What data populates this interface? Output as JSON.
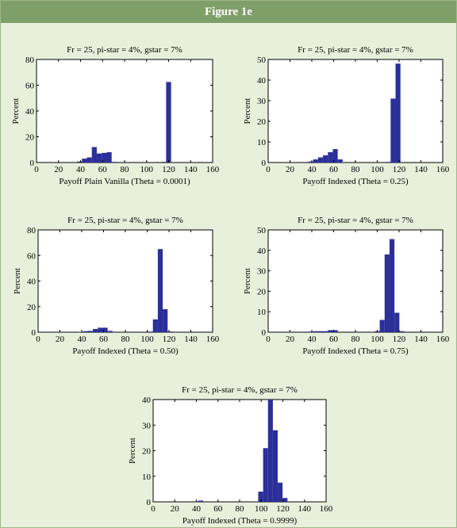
{
  "page_title": "Figure 1e",
  "colors": {
    "banner": "#7f9f68",
    "background": "#e8f0dc",
    "bar": "#2b2f9a"
  },
  "chart_data": [
    {
      "type": "bar",
      "title": "Fr = 25, pi-star = 4%, gstar = 7%",
      "xlabel": "Payoff Plain Vanilla (Theta = 0.0001)",
      "ylabel": "Percent",
      "xlim": [
        0,
        160
      ],
      "ylim": [
        0,
        80
      ],
      "xticks": [
        0,
        20,
        40,
        60,
        80,
        100,
        120,
        140,
        160
      ],
      "yticks": [
        0,
        20,
        40,
        60,
        80
      ],
      "bin_width": 4.5,
      "x": [
        39,
        43.5,
        48,
        52.5,
        57,
        61.5,
        66,
        70.5,
        115.5,
        120
      ],
      "values": [
        0.8,
        3,
        4,
        12,
        7,
        7.5,
        8,
        0.5,
        0.5,
        62.5
      ]
    },
    {
      "type": "bar",
      "title": "Fr = 25, pi-star = 4%, gstar = 7%",
      "xlabel": "Payoff Indexed (Theta = 0.25)",
      "ylabel": "Percent",
      "xlim": [
        0,
        160
      ],
      "ylim": [
        0,
        50
      ],
      "xticks": [
        0,
        20,
        40,
        60,
        80,
        100,
        120,
        140,
        160
      ],
      "yticks": [
        0,
        10,
        20,
        30,
        40,
        50
      ],
      "bin_width": 4.5,
      "x": [
        39,
        43.5,
        48,
        52.5,
        57,
        61.5,
        66,
        110,
        114.5,
        119
      ],
      "values": [
        0.5,
        1.5,
        2.5,
        3.5,
        5,
        6.5,
        1.5,
        0.3,
        31,
        48
      ]
    },
    {
      "type": "bar",
      "title": "Fr = 25, pi-star = 4%, gstar = 7%",
      "xlabel": "Payoff Indexed (Theta = 0.50)",
      "ylabel": "Percent",
      "xlim": [
        0,
        160
      ],
      "ylim": [
        0,
        80
      ],
      "xticks": [
        0,
        20,
        40,
        60,
        80,
        100,
        120,
        140,
        160
      ],
      "yticks": [
        0,
        20,
        40,
        60,
        80
      ],
      "bin_width": 4.5,
      "x": [
        39,
        43.5,
        48,
        52.5,
        57,
        61.5,
        66,
        103,
        107.5,
        112,
        116.5,
        121
      ],
      "values": [
        0.3,
        0.8,
        1,
        2.5,
        3.5,
        3.5,
        1,
        0.5,
        10,
        65,
        18,
        0.5
      ]
    },
    {
      "type": "bar",
      "title": "Fr = 25, pi-star = 4%, gstar = 7%",
      "xlabel": "Payoff Indexed (Theta = 0.75)",
      "ylabel": "Percent",
      "xlim": [
        0,
        160
      ],
      "ylim": [
        0,
        50
      ],
      "xticks": [
        0,
        20,
        40,
        60,
        80,
        100,
        120,
        140,
        160
      ],
      "yticks": [
        0,
        10,
        20,
        30,
        40,
        50
      ],
      "bin_width": 4.5,
      "x": [
        39,
        43.5,
        48,
        52.5,
        57,
        61.5,
        100,
        104.5,
        109,
        113.5,
        118,
        122.5
      ],
      "values": [
        0.3,
        0.5,
        0.5,
        0.5,
        1,
        1,
        0.5,
        6,
        38,
        45.5,
        9.5,
        0.5
      ]
    },
    {
      "type": "bar",
      "title": "Fr = 25, pi-star = 4%, gstar = 7%",
      "xlabel": "Payoff Indexed (Theta = 0.9999)",
      "ylabel": "Percent",
      "xlim": [
        0,
        160
      ],
      "ylim": [
        0,
        40
      ],
      "xticks": [
        0,
        20,
        40,
        60,
        80,
        100,
        120,
        140,
        160
      ],
      "yticks": [
        0,
        10,
        20,
        30,
        40
      ],
      "bin_width": 4.5,
      "x": [
        44,
        99.5,
        104,
        108.5,
        113,
        117.5,
        122
      ],
      "values": [
        0.5,
        4,
        21,
        40,
        28,
        7.5,
        1.5
      ]
    }
  ]
}
